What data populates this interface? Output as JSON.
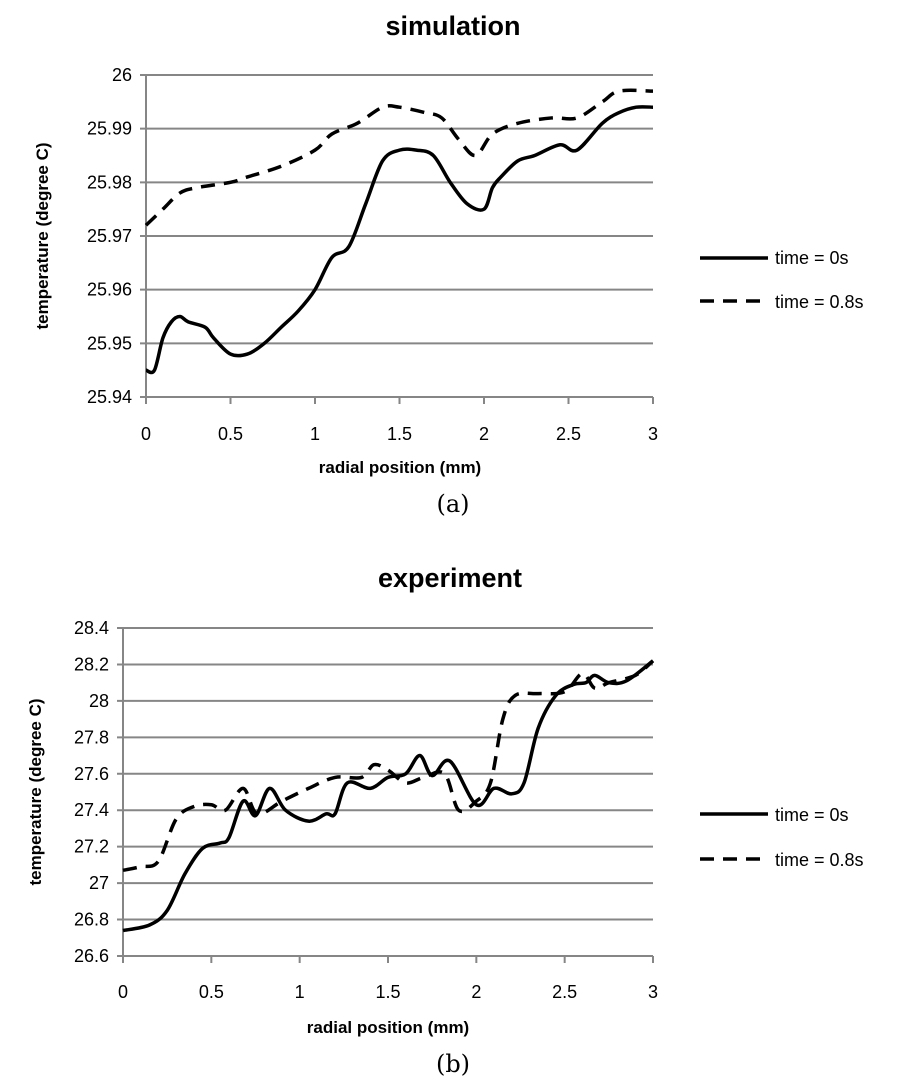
{
  "chart_data": [
    {
      "type": "line",
      "title": "simulation",
      "caption": "(a)",
      "xlabel": "radial position (mm)",
      "ylabel": "temperature (degree C)",
      "xlim": [
        0,
        3
      ],
      "ylim": [
        25.94,
        26
      ],
      "xticks": [
        "0",
        "0.5",
        "1",
        "1.5",
        "2",
        "2.5",
        "3"
      ],
      "yticks": [
        "25.94",
        "25.95",
        "25.96",
        "25.97",
        "25.98",
        "25.99",
        "26"
      ],
      "grid": true,
      "legend_position": "right",
      "series": [
        {
          "name": "time = 0s",
          "style": "solid",
          "x": [
            0,
            0.05,
            0.1,
            0.15,
            0.2,
            0.25,
            0.35,
            0.4,
            0.5,
            0.6,
            0.7,
            0.8,
            0.9,
            1.0,
            1.1,
            1.2,
            1.3,
            1.4,
            1.5,
            1.6,
            1.7,
            1.8,
            1.9,
            2.0,
            2.05,
            2.1,
            2.2,
            2.3,
            2.45,
            2.55,
            2.7,
            2.8,
            2.9,
            3.0
          ],
          "y": [
            25.945,
            25.945,
            25.951,
            25.954,
            25.955,
            25.954,
            25.953,
            25.951,
            25.948,
            25.948,
            25.95,
            25.953,
            25.956,
            25.96,
            25.966,
            25.968,
            25.976,
            25.984,
            25.986,
            25.986,
            25.985,
            25.98,
            25.976,
            25.975,
            25.979,
            25.981,
            25.984,
            25.985,
            25.987,
            25.986,
            25.991,
            25.993,
            25.994,
            25.994
          ]
        },
        {
          "name": "time = 0.8s",
          "style": "dashed",
          "x": [
            0,
            0.1,
            0.2,
            0.3,
            0.5,
            0.6,
            0.8,
            1.0,
            1.1,
            1.25,
            1.4,
            1.5,
            1.65,
            1.75,
            1.85,
            1.95,
            2.05,
            2.2,
            2.4,
            2.55,
            2.7,
            2.8,
            3.0
          ],
          "y": [
            25.972,
            25.975,
            25.978,
            25.979,
            25.98,
            25.981,
            25.983,
            25.986,
            25.989,
            25.991,
            25.994,
            25.994,
            25.993,
            25.992,
            25.988,
            25.985,
            25.989,
            25.991,
            25.992,
            25.992,
            25.995,
            25.997,
            25.997
          ]
        }
      ]
    },
    {
      "type": "line",
      "title": "experiment",
      "caption": "(b)",
      "xlabel": "radial position (mm)",
      "ylabel": "temperature (degree C)",
      "xlim": [
        0,
        3
      ],
      "ylim": [
        26.6,
        28.4
      ],
      "xticks": [
        "0",
        "0.5",
        "1",
        "1.5",
        "2",
        "2.5",
        "3"
      ],
      "yticks": [
        "26.6",
        "26.8",
        "27",
        "27.2",
        "27.4",
        "27.6",
        "27.8",
        "28",
        "28.2",
        "28.4"
      ],
      "grid": true,
      "legend_position": "right",
      "series": [
        {
          "name": "time = 0s",
          "style": "solid",
          "x": [
            0,
            0.15,
            0.25,
            0.35,
            0.45,
            0.55,
            0.6,
            0.68,
            0.75,
            0.83,
            0.92,
            1.05,
            1.15,
            1.2,
            1.27,
            1.4,
            1.5,
            1.6,
            1.68,
            1.75,
            1.85,
            2.0,
            2.1,
            2.2,
            2.27,
            2.35,
            2.45,
            2.55,
            2.62,
            2.67,
            2.75,
            2.85,
            3.0
          ],
          "y": [
            26.74,
            26.77,
            26.85,
            27.05,
            27.19,
            27.22,
            27.25,
            27.45,
            27.37,
            27.52,
            27.4,
            27.34,
            27.38,
            27.38,
            27.55,
            27.52,
            27.58,
            27.6,
            27.7,
            27.59,
            27.67,
            27.43,
            27.52,
            27.49,
            27.55,
            27.85,
            28.03,
            28.09,
            28.1,
            28.14,
            28.1,
            28.11,
            28.22
          ]
        },
        {
          "name": "time = 0.8s",
          "style": "dashed",
          "x": [
            0,
            0.1,
            0.2,
            0.3,
            0.4,
            0.5,
            0.58,
            0.68,
            0.76,
            0.9,
            1.05,
            1.2,
            1.35,
            1.42,
            1.5,
            1.6,
            1.7,
            1.82,
            1.9,
            2.0,
            2.08,
            2.15,
            2.22,
            2.35,
            2.5,
            2.6,
            2.67,
            2.75,
            2.9,
            3.0
          ],
          "y": [
            27.07,
            27.09,
            27.12,
            27.35,
            27.42,
            27.43,
            27.4,
            27.52,
            27.38,
            27.45,
            27.52,
            27.58,
            27.58,
            27.65,
            27.62,
            27.55,
            27.58,
            27.6,
            27.4,
            27.45,
            27.55,
            27.9,
            28.03,
            28.04,
            28.05,
            28.15,
            28.07,
            28.1,
            28.14,
            28.22
          ]
        }
      ]
    }
  ]
}
